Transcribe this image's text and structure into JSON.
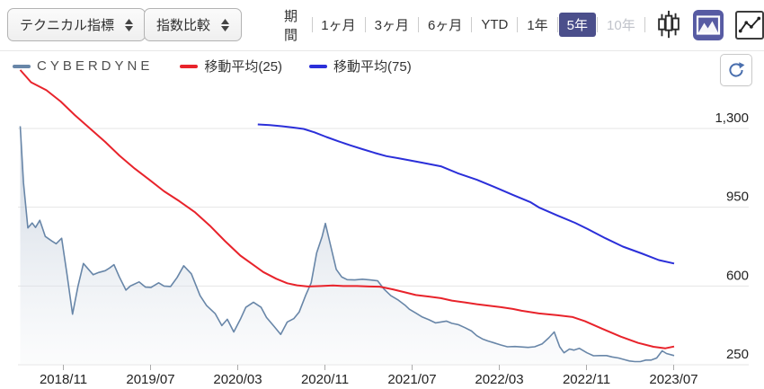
{
  "toolbar": {
    "dropdowns": [
      {
        "label": "テクニカル指標"
      },
      {
        "label": "指数比較"
      }
    ],
    "period_label": "期間",
    "periods": [
      {
        "key": "1m",
        "label": "1ヶ月",
        "state": "normal"
      },
      {
        "key": "3m",
        "label": "3ヶ月",
        "state": "normal"
      },
      {
        "key": "6m",
        "label": "6ヶ月",
        "state": "normal"
      },
      {
        "key": "ytd",
        "label": "YTD",
        "state": "normal"
      },
      {
        "key": "1y",
        "label": "1年",
        "state": "normal"
      },
      {
        "key": "5y",
        "label": "5年",
        "state": "selected"
      },
      {
        "key": "10y",
        "label": "10年",
        "state": "disabled"
      }
    ],
    "chart_type_buttons": [
      {
        "key": "candlestick",
        "icon": "candlestick-chart-icon",
        "selected": false
      },
      {
        "key": "mountain",
        "icon": "mountain-chart-icon",
        "selected": true
      },
      {
        "key": "line",
        "icon": "line-chart-icon",
        "selected": false
      }
    ],
    "selected_accent": "#4b4f8b"
  },
  "legend": {
    "items": [
      {
        "label": "CYBERDYNE",
        "color": "#6886a8"
      },
      {
        "label": "移動平均(25)",
        "color": "#e8232b"
      },
      {
        "label": "移動平均(75)",
        "color": "#2b2fd9"
      }
    ]
  },
  "chart_data": {
    "type": "line",
    "title": "",
    "x_axis": {
      "unit": "months since 2018/07",
      "tick_labels": [
        "2018/11",
        "2019/07",
        "2020/03",
        "2020/11",
        "2021/07",
        "2022/03",
        "2022/11",
        "2023/07"
      ],
      "tick_month_offsets": [
        4,
        12,
        20,
        28,
        36,
        44,
        52,
        60
      ],
      "range_months": [
        0,
        60
      ]
    },
    "y_axis": {
      "tick_labels": [
        "1,300",
        "950",
        "600",
        "250"
      ],
      "tick_values": [
        1300,
        950,
        600,
        250
      ],
      "min": 250,
      "max": 1300,
      "grid": true
    },
    "series": [
      {
        "name": "CYBERDYNE",
        "type": "area",
        "color": "#6886a8",
        "fill_top": "#a4b4c9",
        "fill_bottom": "#f2f4f7",
        "points": [
          [
            0,
            1310
          ],
          [
            0.3,
            1060
          ],
          [
            0.7,
            858
          ],
          [
            1.1,
            880
          ],
          [
            1.4,
            860
          ],
          [
            1.8,
            892
          ],
          [
            2.3,
            820
          ],
          [
            2.9,
            800
          ],
          [
            3.3,
            788
          ],
          [
            3.8,
            812
          ],
          [
            4.3,
            650
          ],
          [
            4.8,
            475
          ],
          [
            5.3,
            600
          ],
          [
            5.8,
            700
          ],
          [
            6.3,
            672
          ],
          [
            6.7,
            650
          ],
          [
            7.2,
            660
          ],
          [
            7.8,
            668
          ],
          [
            8.2,
            680
          ],
          [
            8.6,
            695
          ],
          [
            9.1,
            640
          ],
          [
            9.7,
            582
          ],
          [
            10.1,
            600
          ],
          [
            10.9,
            618
          ],
          [
            11.5,
            595
          ],
          [
            12,
            594
          ],
          [
            12.7,
            614
          ],
          [
            13.2,
            600
          ],
          [
            13.8,
            598
          ],
          [
            14.4,
            638
          ],
          [
            15,
            690
          ],
          [
            15.7,
            654
          ],
          [
            16.5,
            557
          ],
          [
            17.1,
            513
          ],
          [
            17.9,
            477
          ],
          [
            18.5,
            424
          ],
          [
            19,
            452
          ],
          [
            19.6,
            396
          ],
          [
            20.2,
            452
          ],
          [
            20.7,
            505
          ],
          [
            21.4,
            528
          ],
          [
            22.1,
            505
          ],
          [
            22.6,
            460
          ],
          [
            23.3,
            420
          ],
          [
            23.9,
            385
          ],
          [
            24.5,
            440
          ],
          [
            25.1,
            455
          ],
          [
            25.6,
            485
          ],
          [
            26.2,
            560
          ],
          [
            26.7,
            614
          ],
          [
            27.2,
            747
          ],
          [
            27.7,
            820
          ],
          [
            28,
            878
          ],
          [
            28.5,
            775
          ],
          [
            29,
            674
          ],
          [
            29.5,
            640
          ],
          [
            30,
            628
          ],
          [
            30.7,
            627
          ],
          [
            31.4,
            630
          ],
          [
            32.1,
            627
          ],
          [
            32.8,
            623
          ],
          [
            33.4,
            585
          ],
          [
            34,
            557
          ],
          [
            34.7,
            537
          ],
          [
            35.3,
            515
          ],
          [
            35.7,
            497
          ],
          [
            36.3,
            480
          ],
          [
            36.9,
            462
          ],
          [
            37.5,
            450
          ],
          [
            38.1,
            436
          ],
          [
            38.6,
            440
          ],
          [
            39.1,
            444
          ],
          [
            39.6,
            434
          ],
          [
            40.2,
            428
          ],
          [
            40.8,
            415
          ],
          [
            41.4,
            400
          ],
          [
            41.9,
            379
          ],
          [
            42.4,
            365
          ],
          [
            42.9,
            356
          ],
          [
            43.5,
            347
          ],
          [
            44.1,
            338
          ],
          [
            44.7,
            330
          ],
          [
            45.4,
            331
          ],
          [
            46,
            329
          ],
          [
            46.6,
            327
          ],
          [
            47.2,
            330
          ],
          [
            47.9,
            343
          ],
          [
            48.5,
            370
          ],
          [
            49,
            396
          ],
          [
            49.5,
            330
          ],
          [
            49.9,
            303
          ],
          [
            50.4,
            320
          ],
          [
            50.8,
            315
          ],
          [
            51.3,
            323
          ],
          [
            52,
            303
          ],
          [
            52.6,
            290
          ],
          [
            53.2,
            291
          ],
          [
            53.8,
            291
          ],
          [
            54.3,
            285
          ],
          [
            54.9,
            280
          ],
          [
            55.5,
            272
          ],
          [
            55.9,
            267
          ],
          [
            56.4,
            264
          ],
          [
            56.9,
            264
          ],
          [
            57.4,
            271
          ],
          [
            57.9,
            271
          ],
          [
            58.4,
            280
          ],
          [
            58.9,
            312
          ],
          [
            59.3,
            300
          ],
          [
            60,
            291
          ]
        ]
      },
      {
        "name": "移動平均(25)",
        "type": "line",
        "color": "#e8232b",
        "points": [
          [
            0,
            1560
          ],
          [
            1,
            1505
          ],
          [
            2.4,
            1470
          ],
          [
            3.7,
            1420
          ],
          [
            5,
            1360
          ],
          [
            6.4,
            1300
          ],
          [
            7.8,
            1240
          ],
          [
            9.1,
            1180
          ],
          [
            10.5,
            1122
          ],
          [
            11.9,
            1070
          ],
          [
            13.2,
            1021
          ],
          [
            14.6,
            977
          ],
          [
            16,
            929
          ],
          [
            17.4,
            868
          ],
          [
            18.8,
            799
          ],
          [
            20.2,
            735
          ],
          [
            21.5,
            690
          ],
          [
            22.3,
            662
          ],
          [
            23.5,
            632
          ],
          [
            24.5,
            612
          ],
          [
            25.4,
            603
          ],
          [
            26.4,
            598
          ],
          [
            27.6,
            600
          ],
          [
            28.7,
            602
          ],
          [
            29.7,
            600
          ],
          [
            30.9,
            600
          ],
          [
            32,
            598
          ],
          [
            33,
            597
          ],
          [
            34.2,
            585
          ],
          [
            35.3,
            572
          ],
          [
            36.3,
            560
          ],
          [
            37.5,
            553
          ],
          [
            38.6,
            546
          ],
          [
            39.6,
            535
          ],
          [
            40.8,
            527
          ],
          [
            41.9,
            519
          ],
          [
            42.9,
            513
          ],
          [
            44.1,
            506
          ],
          [
            45.2,
            498
          ],
          [
            46,
            490
          ],
          [
            47.6,
            478
          ],
          [
            49.3,
            470
          ],
          [
            50.7,
            462
          ],
          [
            51.8,
            444
          ],
          [
            53.4,
            410
          ],
          [
            55.1,
            375
          ],
          [
            56.7,
            347
          ],
          [
            58.1,
            330
          ],
          [
            59.2,
            323
          ],
          [
            60,
            331
          ]
        ]
      },
      {
        "name": "移動平均(75)",
        "type": "line",
        "color": "#2b2fd9",
        "points": [
          [
            21.8,
            1318
          ],
          [
            22.9,
            1315
          ],
          [
            24,
            1310
          ],
          [
            24.9,
            1305
          ],
          [
            26,
            1298
          ],
          [
            27,
            1283
          ],
          [
            28.1,
            1262
          ],
          [
            29.2,
            1243
          ],
          [
            30.3,
            1225
          ],
          [
            31.4,
            1208
          ],
          [
            32.5,
            1192
          ],
          [
            33.6,
            1177
          ],
          [
            34.7,
            1168
          ],
          [
            35.8,
            1158
          ],
          [
            36.9,
            1148
          ],
          [
            38.6,
            1132
          ],
          [
            40.2,
            1100
          ],
          [
            41.9,
            1072
          ],
          [
            43.5,
            1040
          ],
          [
            45.2,
            1005
          ],
          [
            46.8,
            973
          ],
          [
            47.6,
            949
          ],
          [
            49.3,
            913
          ],
          [
            50.9,
            881
          ],
          [
            52,
            855
          ],
          [
            53.7,
            812
          ],
          [
            55.3,
            775
          ],
          [
            57,
            745
          ],
          [
            58.6,
            715
          ],
          [
            60,
            700
          ]
        ]
      }
    ],
    "legend_position": "top-left"
  }
}
